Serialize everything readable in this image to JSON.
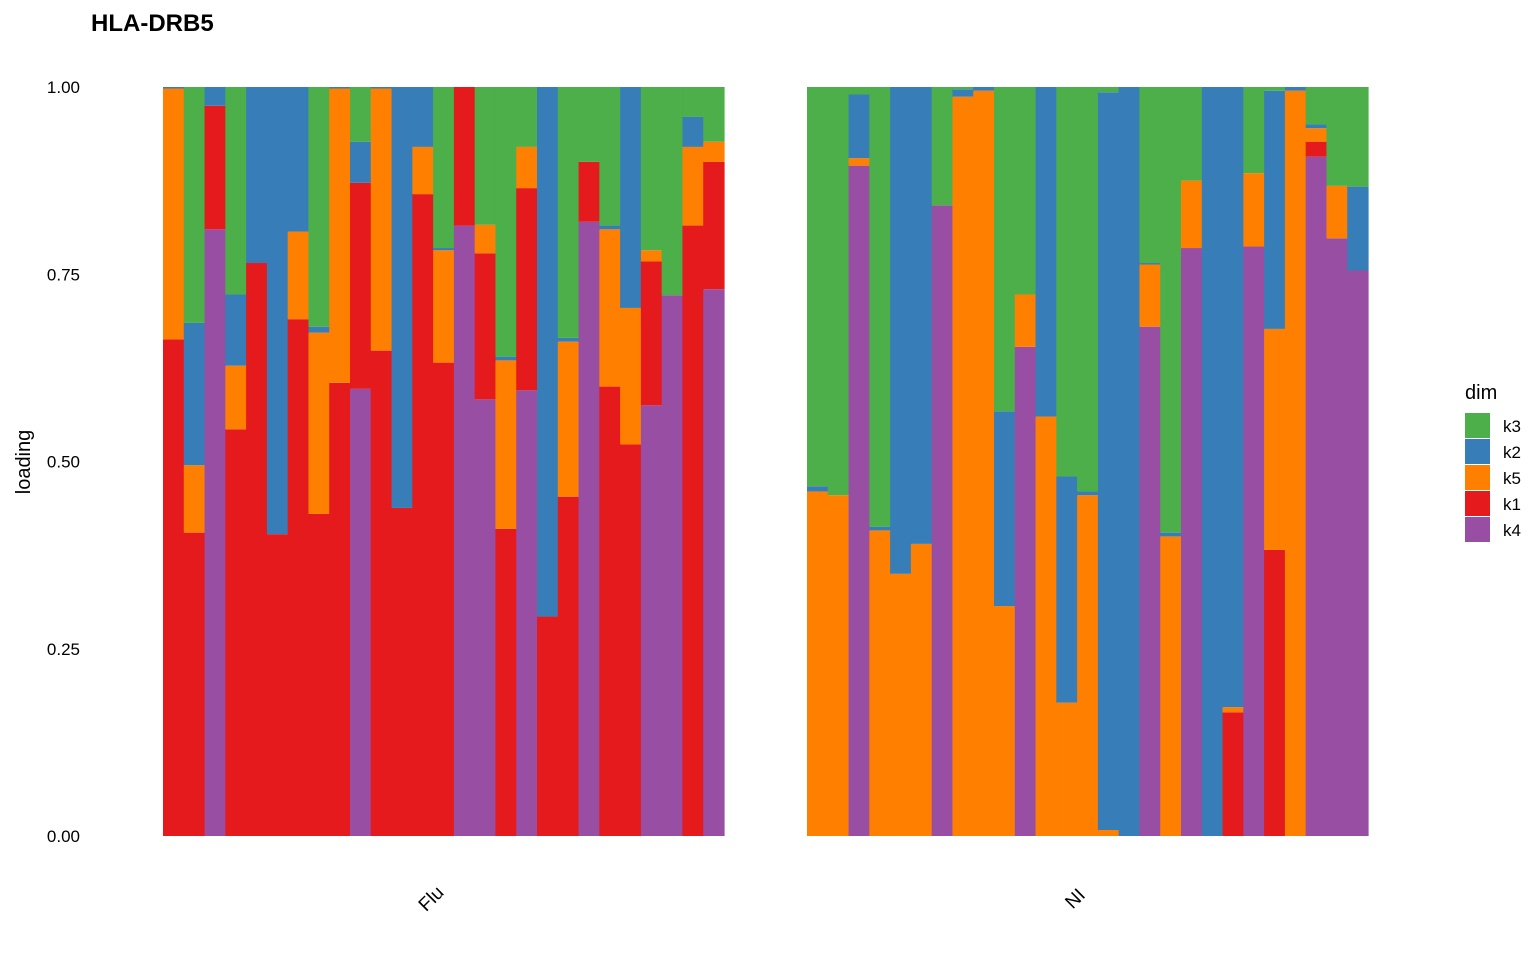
{
  "chart_data": {
    "type": "bar",
    "stacked": true,
    "title": "HLA-DRB5",
    "xlabel": "",
    "ylabel": "loading",
    "ylim": [
      0,
      1
    ],
    "yticks": [
      "0.00",
      "0.25",
      "0.50",
      "0.75",
      "1.00"
    ],
    "grid": false,
    "legend": {
      "title": "dim",
      "position": "right"
    },
    "stack_order_bottom_to_top": [
      "k4",
      "k1",
      "k5",
      "k2",
      "k3"
    ],
    "legend_order": [
      "k3",
      "k2",
      "k5",
      "k1",
      "k4"
    ],
    "colors": {
      "k3": "#4daf4a",
      "k2": "#377eb8",
      "k5": "#ff7f00",
      "k1": "#e41a1c",
      "k4": "#984ea3"
    },
    "facets": [
      {
        "label": "Flu",
        "bars": [
          {
            "k4": 0.0,
            "k1": 0.663,
            "k5": 0.335,
            "k2": 0.002,
            "k3": 0.0
          },
          {
            "k4": 0.0,
            "k1": 0.405,
            "k5": 0.09,
            "k2": 0.19,
            "k3": 0.315
          },
          {
            "k4": 0.81,
            "k1": 0.165,
            "k5": 0.0,
            "k2": 0.025,
            "k3": 0.0
          },
          {
            "k4": 0.0,
            "k1": 0.543,
            "k5": 0.085,
            "k2": 0.095,
            "k3": 0.277
          },
          {
            "k4": 0.0,
            "k1": 0.765,
            "k5": 0.0,
            "k2": 0.235,
            "k3": 0.0
          },
          {
            "k4": 0.0,
            "k1": 0.403,
            "k5": 0.0,
            "k2": 0.597,
            "k3": 0.0
          },
          {
            "k4": 0.0,
            "k1": 0.69,
            "k5": 0.117,
            "k2": 0.193,
            "k3": 0.0
          },
          {
            "k4": 0.0,
            "k1": 0.43,
            "k5": 0.242,
            "k2": 0.008,
            "k3": 0.32
          },
          {
            "k4": 0.0,
            "k1": 0.605,
            "k5": 0.393,
            "k2": 0.002,
            "k3": 0.0
          },
          {
            "k4": 0.597,
            "k1": 0.275,
            "k5": 0.0,
            "k2": 0.055,
            "k3": 0.073
          },
          {
            "k4": 0.0,
            "k1": 0.648,
            "k5": 0.35,
            "k2": 0.002,
            "k3": 0.0
          },
          {
            "k4": 0.0,
            "k1": 0.438,
            "k5": 0.0,
            "k2": 0.562,
            "k3": 0.0
          },
          {
            "k4": 0.0,
            "k1": 0.857,
            "k5": 0.063,
            "k2": 0.08,
            "k3": 0.0
          },
          {
            "k4": 0.0,
            "k1": 0.632,
            "k5": 0.15,
            "k2": 0.003,
            "k3": 0.215
          },
          {
            "k4": 0.815,
            "k1": 0.185,
            "k5": 0.0,
            "k2": 0.0,
            "k3": 0.0
          },
          {
            "k4": 0.583,
            "k1": 0.195,
            "k5": 0.038,
            "k2": 0.0,
            "k3": 0.184
          },
          {
            "k4": 0.0,
            "k1": 0.41,
            "k5": 0.225,
            "k2": 0.005,
            "k3": 0.36
          },
          {
            "k4": 0.595,
            "k1": 0.27,
            "k5": 0.055,
            "k2": 0.0,
            "k3": 0.08
          },
          {
            "k4": 0.0,
            "k1": 0.293,
            "k5": 0.0,
            "k2": 0.707,
            "k3": 0.0
          },
          {
            "k4": 0.0,
            "k1": 0.453,
            "k5": 0.207,
            "k2": 0.005,
            "k3": 0.335
          },
          {
            "k4": 0.82,
            "k1": 0.08,
            "k5": 0.0,
            "k2": 0.0,
            "k3": 0.1
          },
          {
            "k4": 0.0,
            "k1": 0.6,
            "k5": 0.21,
            "k2": 0.005,
            "k3": 0.185
          },
          {
            "k4": 0.0,
            "k1": 0.523,
            "k5": 0.182,
            "k2": 0.295,
            "k3": 0.0
          },
          {
            "k4": 0.575,
            "k1": 0.192,
            "k5": 0.015,
            "k2": 0.0,
            "k3": 0.218
          },
          {
            "k4": 0.722,
            "k1": 0.0,
            "k5": 0.0,
            "k2": 0.0,
            "k3": 0.278
          },
          {
            "k4": 0.0,
            "k1": 0.815,
            "k5": 0.105,
            "k2": 0.04,
            "k3": 0.04
          },
          {
            "k4": 0.73,
            "k1": 0.17,
            "k5": 0.027,
            "k2": 0.0,
            "k3": 0.073
          }
        ]
      },
      {
        "label": "NI",
        "bars": [
          {
            "k4": 0.0,
            "k1": 0.0,
            "k5": 0.46,
            "k2": 0.007,
            "k3": 0.533
          },
          {
            "k4": 0.0,
            "k1": 0.0,
            "k5": 0.455,
            "k2": 0.0,
            "k3": 0.545
          },
          {
            "k4": 0.895,
            "k1": 0.0,
            "k5": 0.01,
            "k2": 0.085,
            "k3": 0.01
          },
          {
            "k4": 0.0,
            "k1": 0.0,
            "k5": 0.408,
            "k2": 0.005,
            "k3": 0.587
          },
          {
            "k4": 0.0,
            "k1": 0.0,
            "k5": 0.35,
            "k2": 0.65,
            "k3": 0.0
          },
          {
            "k4": 0.0,
            "k1": 0.0,
            "k5": 0.39,
            "k2": 0.61,
            "k3": 0.0
          },
          {
            "k4": 0.842,
            "k1": 0.0,
            "k5": 0.0,
            "k2": 0.0,
            "k3": 0.158
          },
          {
            "k4": 0.0,
            "k1": 0.0,
            "k5": 0.987,
            "k2": 0.01,
            "k3": 0.003
          },
          {
            "k4": 0.0,
            "k1": 0.0,
            "k5": 0.995,
            "k2": 0.005,
            "k3": 0.0
          },
          {
            "k4": 0.0,
            "k1": 0.0,
            "k5": 0.307,
            "k2": 0.26,
            "k3": 0.433
          },
          {
            "k4": 0.653,
            "k1": 0.0,
            "k5": 0.07,
            "k2": 0.0,
            "k3": 0.277
          },
          {
            "k4": 0.0,
            "k1": 0.0,
            "k5": 0.56,
            "k2": 0.44,
            "k3": 0.0
          },
          {
            "k4": 0.0,
            "k1": 0.0,
            "k5": 0.178,
            "k2": 0.302,
            "k3": 0.52
          },
          {
            "k4": 0.0,
            "k1": 0.0,
            "k5": 0.455,
            "k2": 0.005,
            "k3": 0.54
          },
          {
            "k4": 0.0,
            "k1": 0.0,
            "k5": 0.008,
            "k2": 0.985,
            "k3": 0.007
          },
          {
            "k4": 0.0,
            "k1": 0.0,
            "k5": 0.0,
            "k2": 1.0,
            "k3": 0.0
          },
          {
            "k4": 0.68,
            "k1": 0.0,
            "k5": 0.083,
            "k2": 0.002,
            "k3": 0.235
          },
          {
            "k4": 0.0,
            "k1": 0.0,
            "k5": 0.4,
            "k2": 0.005,
            "k3": 0.595
          },
          {
            "k4": 0.785,
            "k1": 0.0,
            "k5": 0.09,
            "k2": 0.0,
            "k3": 0.125
          },
          {
            "k4": 0.0,
            "k1": 0.0,
            "k5": 0.0,
            "k2": 1.0,
            "k3": 0.0
          },
          {
            "k4": 0.0,
            "k1": 0.165,
            "k5": 0.007,
            "k2": 0.828,
            "k3": 0.0
          },
          {
            "k4": 0.787,
            "k1": 0.0,
            "k5": 0.098,
            "k2": 0.0,
            "k3": 0.115
          },
          {
            "k4": 0.0,
            "k1": 0.382,
            "k5": 0.295,
            "k2": 0.318,
            "k3": 0.005
          },
          {
            "k4": 0.0,
            "k1": 0.0,
            "k5": 0.995,
            "k2": 0.005,
            "k3": 0.0
          },
          {
            "k4": 0.907,
            "k1": 0.02,
            "k5": 0.018,
            "k2": 0.005,
            "k3": 0.05
          },
          {
            "k4": 0.798,
            "k1": 0.0,
            "k5": 0.07,
            "k2": 0.0,
            "k3": 0.132
          },
          {
            "k4": 0.755,
            "k1": 0.0,
            "k5": 0.0,
            "k2": 0.112,
            "k3": 0.133
          }
        ]
      }
    ]
  }
}
